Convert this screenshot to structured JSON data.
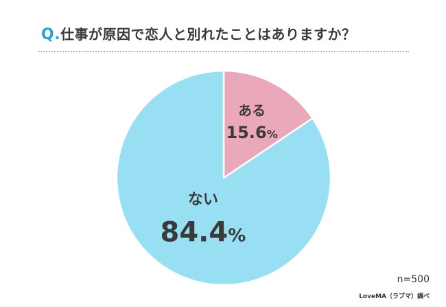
{
  "header": {
    "q_prefix": "Q.",
    "question": "仕事が原因で恋人と別れたことはありますか？"
  },
  "chart_data": {
    "type": "pie",
    "title": "Q.仕事が原因で恋人と別れたことはありますか？",
    "start_angle": "12 o'clock, clockwise",
    "slices": [
      {
        "label": "ある",
        "value": 15.6,
        "value_label": "15.6",
        "color": "#eaa8ba"
      },
      {
        "label": "ない",
        "value": 84.4,
        "value_label": "84.4",
        "color": "#98dff3"
      }
    ],
    "unit": "%",
    "sample_size": "n=500",
    "source": "LoveMA（ラブマ）調べ"
  },
  "colors": {
    "accent": "#2b9fd8",
    "text": "#3a3a3a",
    "slice_border": "#ffffff"
  }
}
